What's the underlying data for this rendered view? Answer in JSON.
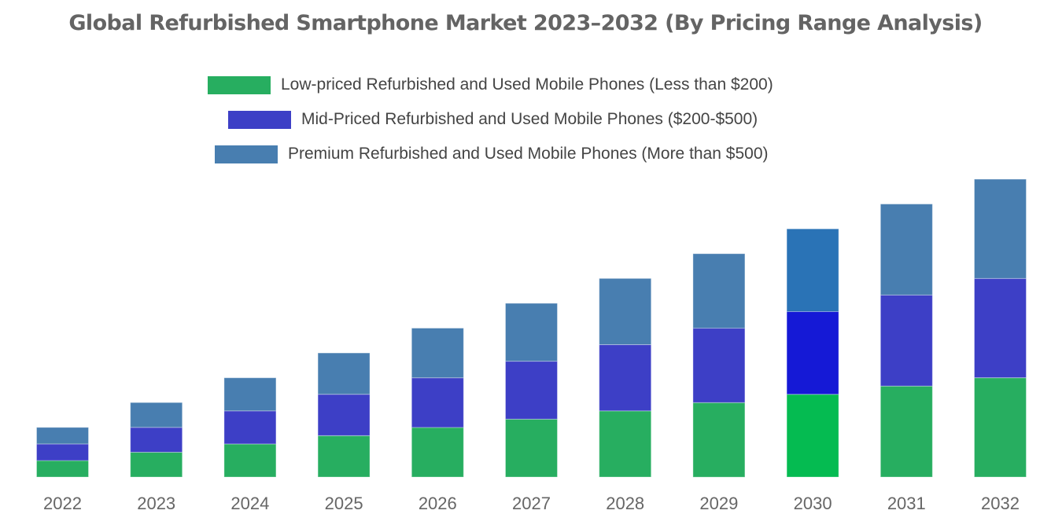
{
  "chart_data": {
    "type": "bar",
    "stacked": true,
    "title": "Global Refurbished Smartphone Market 2023–2032 (By Pricing Range Analysis)",
    "xlabel": "",
    "ylabel": "",
    "y_axis_visible": false,
    "grid": false,
    "legend_position": "top-center",
    "categories": [
      "2022",
      "2023",
      "2024",
      "2025",
      "2026",
      "2027",
      "2028",
      "2029",
      "2030",
      "2031",
      "2032"
    ],
    "series": [
      {
        "name": "Low-priced Refurbished and Used Mobile Phones (Less than $200)",
        "color": "#27AE60",
        "highlight_color": "#05BB51",
        "values": [
          2,
          3,
          4,
          5,
          6,
          7,
          8,
          9,
          10,
          11,
          12
        ]
      },
      {
        "name": "Mid-Priced Refurbished and Used Mobile Phones ($200-$500)",
        "color": "#3D3FC6",
        "highlight_color": "#1519D6",
        "values": [
          2,
          3,
          4,
          5,
          6,
          7,
          8,
          9,
          10,
          11,
          12
        ]
      },
      {
        "name": "Premium Refurbished and Used Mobile Phones (More than $500)",
        "color": "#487EB0",
        "highlight_color": "#2A73B6",
        "values": [
          2,
          3,
          4,
          5,
          6,
          7,
          8,
          9,
          10,
          11,
          12
        ]
      }
    ],
    "highlighted_category": "2030",
    "ylim": [
      0,
      36
    ],
    "value_units": "relative (no axis shown)"
  }
}
